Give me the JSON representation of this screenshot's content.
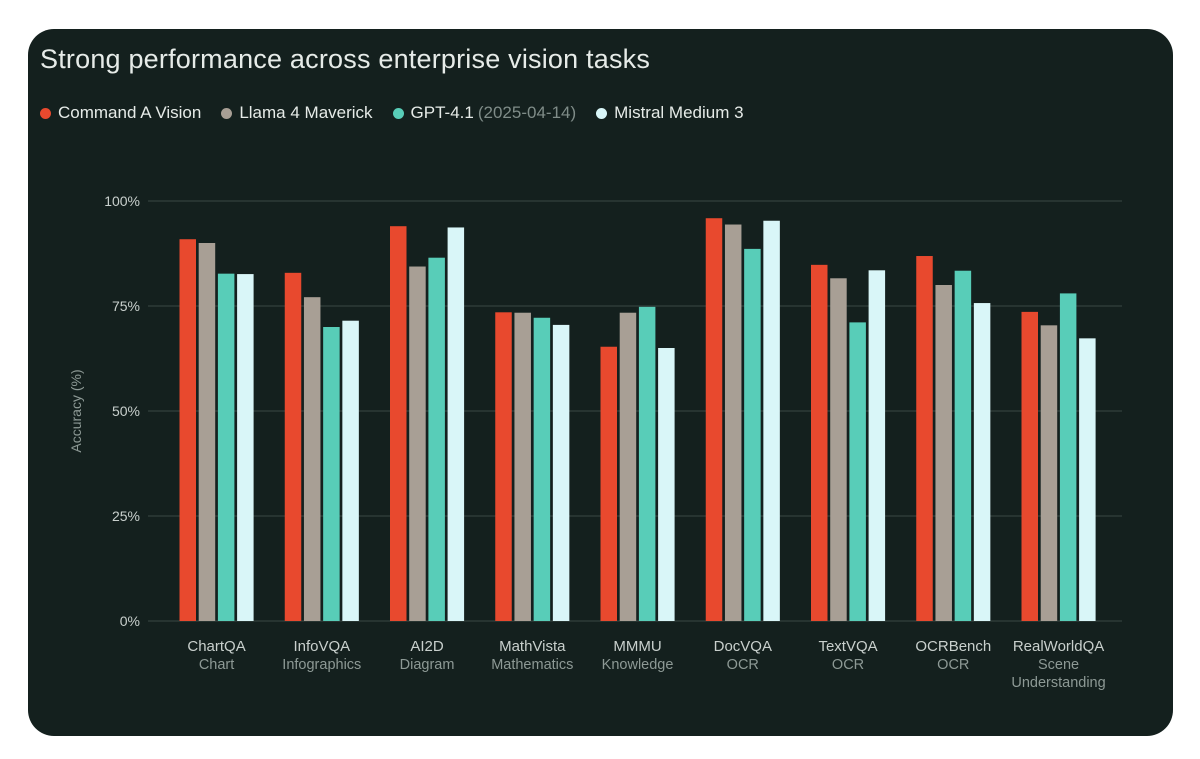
{
  "colors": {
    "background": "#14201e",
    "grid": "#3a4744",
    "axis_text": "#c9d0cd",
    "sub_text": "#8d9995",
    "title": "#e6ebe8"
  },
  "chart_data": {
    "type": "bar",
    "title": "Strong performance across enterprise vision tasks",
    "ylabel": "Accuracy (%)",
    "xlabel": "",
    "ylim": [
      0,
      100
    ],
    "yticks": [
      0,
      25,
      50,
      75,
      100
    ],
    "ytick_labels": [
      "0%",
      "25%",
      "50%",
      "75%",
      "100%"
    ],
    "grid": true,
    "legend_position": "top-left",
    "categories": [
      {
        "name": "ChartQA",
        "sub": [
          "Chart"
        ]
      },
      {
        "name": "InfoVQA",
        "sub": [
          "Infographics"
        ]
      },
      {
        "name": "AI2D",
        "sub": [
          "Diagram"
        ]
      },
      {
        "name": "MathVista",
        "sub": [
          "Mathematics"
        ]
      },
      {
        "name": "MMMU",
        "sub": [
          "Knowledge"
        ]
      },
      {
        "name": "DocVQA",
        "sub": [
          "OCR"
        ]
      },
      {
        "name": "TextVQA",
        "sub": [
          "OCR"
        ]
      },
      {
        "name": "OCRBench",
        "sub": [
          "OCR"
        ]
      },
      {
        "name": "RealWorldQA",
        "sub": [
          "Scene",
          "Understanding"
        ]
      }
    ],
    "series": [
      {
        "name": "Command A Vision",
        "note": "",
        "color": "#e8492e",
        "values": [
          90.9,
          82.9,
          94.0,
          73.5,
          65.3,
          95.9,
          84.8,
          86.9,
          73.6
        ]
      },
      {
        "name": "Llama 4 Maverick",
        "note": "",
        "color": "#a89f95",
        "values": [
          90.0,
          77.1,
          84.4,
          73.4,
          73.4,
          94.4,
          81.6,
          80.0,
          70.4
        ]
      },
      {
        "name": "GPT-4.1",
        "note": "(2025-04-14)",
        "color": "#58cdb8",
        "values": [
          82.7,
          70.0,
          86.5,
          72.2,
          74.8,
          88.6,
          71.1,
          83.4,
          78.0
        ]
      },
      {
        "name": "Mistral Medium 3",
        "note": "",
        "color": "#d9f6f8",
        "values": [
          82.6,
          71.5,
          93.7,
          70.5,
          65.0,
          95.3,
          83.5,
          75.7,
          67.3
        ]
      }
    ]
  }
}
